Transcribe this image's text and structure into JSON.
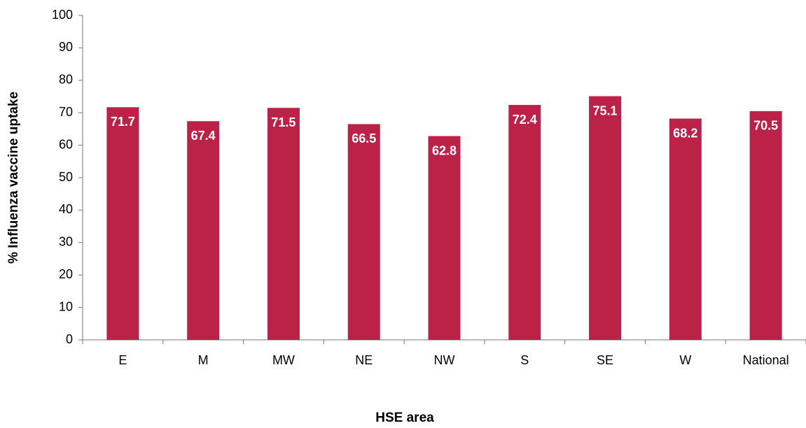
{
  "chart_data": {
    "type": "bar",
    "y_label": "% Influenza vaccine uptake",
    "x_label": "HSE area",
    "categories": [
      "E",
      "M",
      "MW",
      "NE",
      "NW",
      "S",
      "SE",
      "W",
      "National"
    ],
    "values": [
      71.7,
      67.4,
      71.5,
      66.5,
      62.8,
      72.4,
      75.1,
      68.2,
      70.5
    ],
    "color": "#bc2148",
    "ylim": [
      0,
      100
    ],
    "yticks": [
      0,
      10,
      20,
      30,
      40,
      50,
      60,
      70,
      80,
      90,
      100
    ],
    "grid": false
  }
}
